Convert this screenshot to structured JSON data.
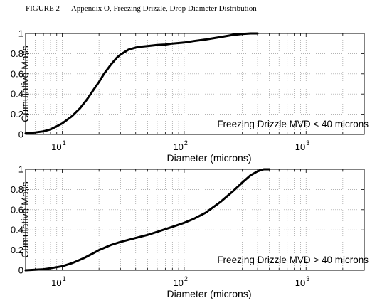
{
  "page": {
    "title": "FIGURE 2 — Appendix O, Freezing Drizzle, Drop Diameter Distribution"
  },
  "chart_data": [
    {
      "type": "line",
      "xscale": "log",
      "xlim": [
        5,
        3000
      ],
      "ylim": [
        0,
        1
      ],
      "xlabel": "Diameter (microns)",
      "ylabel": "Cumulative Mass",
      "xticks": [
        {
          "v": 10,
          "base": "10",
          "exp": "1"
        },
        {
          "v": 100,
          "base": "10",
          "exp": "2"
        },
        {
          "v": 1000,
          "base": "10",
          "exp": "3"
        }
      ],
      "yticks": [
        {
          "v": 0,
          "label": "0"
        },
        {
          "v": 0.2,
          "label": "0.2"
        },
        {
          "v": 0.4,
          "label": "0.4"
        },
        {
          "v": 0.6,
          "label": "0.6"
        },
        {
          "v": 0.8,
          "label": "0.8"
        },
        {
          "v": 1,
          "label": "1"
        }
      ],
      "grid": true,
      "annotation": "Freezing Drizzle MVD < 40 microns",
      "series": [
        {
          "x": [
            5,
            6,
            7,
            8,
            9,
            10,
            12,
            14,
            16,
            18,
            20,
            22,
            25,
            28,
            30,
            35,
            40,
            45,
            50,
            60,
            70,
            80,
            100,
            120,
            150,
            200,
            250,
            300,
            350,
            400
          ],
          "y": [
            0.01,
            0.02,
            0.03,
            0.05,
            0.08,
            0.11,
            0.18,
            0.26,
            0.35,
            0.44,
            0.52,
            0.6,
            0.69,
            0.76,
            0.79,
            0.84,
            0.86,
            0.87,
            0.875,
            0.885,
            0.89,
            0.9,
            0.91,
            0.925,
            0.94,
            0.965,
            0.985,
            0.995,
            1.0,
            1.0
          ]
        }
      ]
    },
    {
      "type": "line",
      "xscale": "log",
      "xlim": [
        5,
        3000
      ],
      "ylim": [
        0,
        1
      ],
      "xlabel": "Diameter (microns)",
      "ylabel": "Cumulative Mass",
      "xticks": [
        {
          "v": 10,
          "base": "10",
          "exp": "1"
        },
        {
          "v": 100,
          "base": "10",
          "exp": "2"
        },
        {
          "v": 1000,
          "base": "10",
          "exp": "3"
        }
      ],
      "yticks": [
        {
          "v": 0,
          "label": "0"
        },
        {
          "v": 0.2,
          "label": "0.2"
        },
        {
          "v": 0.4,
          "label": "0.4"
        },
        {
          "v": 0.6,
          "label": "0.6"
        },
        {
          "v": 0.8,
          "label": "0.8"
        },
        {
          "v": 1,
          "label": "1"
        }
      ],
      "grid": true,
      "annotation": "Freezing Drizzle MVD > 40 microns",
      "series": [
        {
          "x": [
            5,
            6,
            7,
            8,
            10,
            12,
            15,
            18,
            20,
            25,
            30,
            40,
            50,
            60,
            80,
            100,
            120,
            150,
            200,
            250,
            300,
            350,
            400,
            450,
            500
          ],
          "y": [
            0.0,
            0.005,
            0.01,
            0.02,
            0.04,
            0.07,
            0.12,
            0.17,
            0.2,
            0.25,
            0.28,
            0.32,
            0.35,
            0.38,
            0.43,
            0.47,
            0.51,
            0.57,
            0.68,
            0.78,
            0.87,
            0.94,
            0.98,
            1.0,
            1.0
          ]
        }
      ]
    }
  ]
}
